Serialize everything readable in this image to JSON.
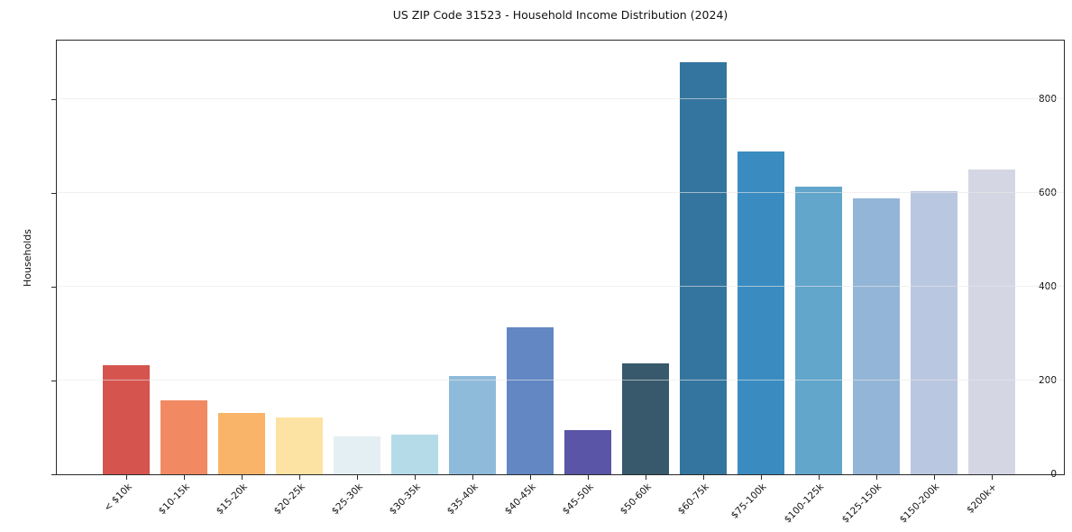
{
  "chart_data": {
    "type": "bar",
    "title": "US ZIP Code 31523 - Household Income Distribution (2024)",
    "ylabel": "Households",
    "xlabel": "",
    "categories": [
      "< $10k",
      "$10-15k",
      "$15-20k",
      "$20-25k",
      "$25-30k",
      "$30-35k",
      "$35-40k",
      "$40-45k",
      "$45-50k",
      "$50-60k",
      "$60-75k",
      "$75-100k",
      "$100-125k",
      "$125-150k",
      "$150-200k",
      "$200k+"
    ],
    "values": [
      233,
      157,
      130,
      121,
      80,
      84,
      209,
      313,
      94,
      236,
      878,
      687,
      612,
      587,
      603,
      649
    ],
    "bar_colors": [
      "#d6544e",
      "#f18a62",
      "#f9b469",
      "#fce3a3",
      "#e3eff3",
      "#b5dbe9",
      "#8fbbdb",
      "#6287c3",
      "#5a55a7",
      "#37596b",
      "#34759f",
      "#3a8cc0",
      "#62a6cb",
      "#93b5d7",
      "#bac7e0",
      "#d5d6e4"
    ],
    "yticks": [
      0,
      200,
      400,
      600,
      800
    ],
    "ylim": [
      0,
      924
    ],
    "grid": true,
    "legend": "none",
    "background_color": "#ffffff",
    "spine_color": "#2a2a2a",
    "grid_color": "#e7e7e7"
  }
}
